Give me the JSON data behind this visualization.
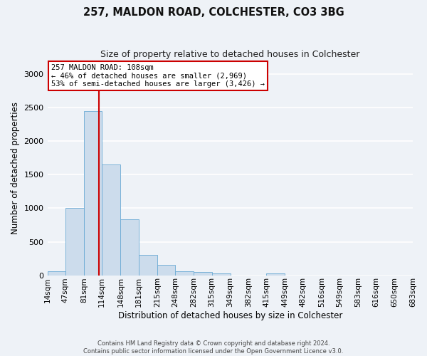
{
  "title1": "257, MALDON ROAD, COLCHESTER, CO3 3BG",
  "title2": "Size of property relative to detached houses in Colchester",
  "xlabel": "Distribution of detached houses by size in Colchester",
  "ylabel": "Number of detached properties",
  "footer1": "Contains HM Land Registry data © Crown copyright and database right 2024.",
  "footer2": "Contains public sector information licensed under the Open Government Licence v3.0.",
  "annotation_title": "257 MALDON ROAD: 108sqm",
  "annotation_line1": "← 46% of detached houses are smaller (2,969)",
  "annotation_line2": "53% of semi-detached houses are larger (3,426) →",
  "bar_color": "#ccdcec",
  "bar_edge_color": "#6aaad4",
  "red_line_x": 108,
  "red_line_color": "#cc0000",
  "bins": [
    14,
    47,
    81,
    114,
    148,
    181,
    215,
    248,
    282,
    315,
    349,
    382,
    415,
    449,
    482,
    516,
    549,
    583,
    616,
    650,
    683
  ],
  "counts": [
    55,
    1000,
    2450,
    1650,
    840,
    300,
    155,
    55,
    45,
    30,
    0,
    0,
    30,
    0,
    0,
    0,
    0,
    0,
    0,
    0
  ],
  "ylim": [
    0,
    3200
  ],
  "yticks": [
    0,
    500,
    1000,
    1500,
    2000,
    2500,
    3000
  ],
  "background_color": "#eef2f7",
  "grid_color": "#ffffff",
  "annotation_box_color": "#ffffff",
  "annotation_box_edge": "#cc0000"
}
